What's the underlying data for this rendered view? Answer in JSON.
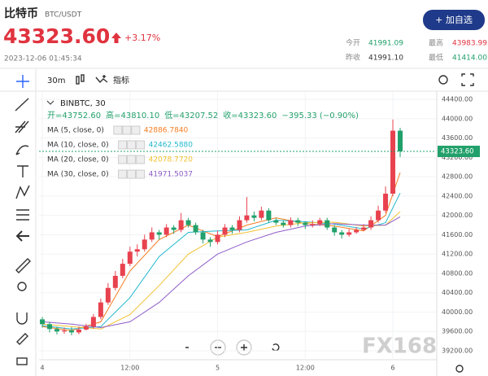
{
  "header": {
    "title": "比特币",
    "symbol": "BTC/USDT",
    "button": "+ 加自选",
    "price": "43323.60",
    "change": "+3.17%",
    "time": "2023-12-06 01:45:34",
    "stats": [
      {
        "label": "今开",
        "value": "41991.09"
      },
      {
        "label": "最高",
        "value": "43983.99"
      },
      {
        "label": "昨收",
        "value": "41991.10"
      },
      {
        "label": "最低",
        "value": "41414.00"
      }
    ]
  },
  "toolbar": {
    "interval": "30m",
    "indicators": "指标"
  },
  "watermark": "FX168",
  "chart_data": {
    "type": "candlestick",
    "symbol_label": "BINBTC, 30",
    "ohlc_line": [
      "开=43752.60",
      "高=43810.10",
      "低=43207.52",
      "收=43323.60",
      "−395.33 (−0.90%)"
    ],
    "up_color": "#e8424f",
    "down_color": "#22a06b",
    "grid": true,
    "x": [
      0,
      1,
      2,
      3,
      4,
      5,
      6,
      7,
      8,
      9,
      10,
      11,
      12,
      13,
      14,
      15,
      16,
      17,
      18,
      19,
      20,
      21,
      22,
      23,
      24,
      25,
      26,
      27,
      28,
      29,
      30,
      31,
      32,
      33,
      34,
      35,
      36,
      37,
      38,
      39,
      40,
      41,
      42,
      43,
      44,
      45,
      46,
      47,
      48,
      49
    ],
    "open": [
      39850,
      39750,
      39650,
      39600,
      39620,
      39580,
      39640,
      39700,
      39900,
      40200,
      40500,
      40750,
      41000,
      41250,
      41300,
      41500,
      41650,
      41600,
      41750,
      41700,
      41900,
      41800,
      41650,
      41500,
      41450,
      41600,
      41750,
      41700,
      41900,
      42000,
      41950,
      42100,
      41900,
      41850,
      41800,
      41900,
      41850,
      41800,
      41820,
      41900,
      41750,
      41650,
      41600,
      41650,
      41700,
      41750,
      41900,
      42100,
      42450,
      43752.6
    ],
    "high": [
      39900,
      39800,
      39700,
      39680,
      39690,
      39700,
      39760,
      39960,
      40280,
      40600,
      40850,
      41100,
      41350,
      41400,
      41600,
      41750,
      41700,
      41820,
      41800,
      42050,
      41950,
      41850,
      41700,
      41550,
      41680,
      41820,
      41800,
      41980,
      42380,
      42080,
      42180,
      42150,
      41950,
      41900,
      41960,
      41950,
      41880,
      41900,
      41950,
      41950,
      41800,
      41700,
      41720,
      41760,
      41820,
      41980,
      42200,
      42600,
      43983.99,
      43810.1
    ],
    "low": [
      39680,
      39580,
      39540,
      39550,
      39520,
      39540,
      39620,
      39660,
      39850,
      40150,
      40450,
      40700,
      40950,
      41150,
      41250,
      41450,
      41500,
      41550,
      41620,
      41650,
      41750,
      41600,
      41420,
      41350,
      41400,
      41550,
      41620,
      41650,
      41850,
      41880,
      41900,
      41850,
      41800,
      41750,
      41750,
      41780,
      41720,
      41750,
      41780,
      41700,
      41580,
      41520,
      41560,
      41620,
      41680,
      41700,
      41850,
      42050,
      42400,
      43207.52
    ],
    "close": [
      39750,
      39650,
      39600,
      39620,
      39580,
      39640,
      39700,
      39900,
      40200,
      40500,
      40750,
      41000,
      41250,
      41300,
      41500,
      41650,
      41600,
      41750,
      41700,
      41900,
      41800,
      41650,
      41500,
      41450,
      41600,
      41750,
      41700,
      41900,
      42000,
      41950,
      42100,
      41900,
      41850,
      41800,
      41900,
      41850,
      41800,
      41820,
      41900,
      41750,
      41650,
      41600,
      41650,
      41700,
      41750,
      41900,
      42100,
      42450,
      43752.6,
      43323.6
    ],
    "ylim": [
      39015,
      44570
    ],
    "yticks": [
      {
        "value": 39200,
        "label": "39200.00"
      },
      {
        "value": 39600,
        "label": "39600.00"
      },
      {
        "value": 40000,
        "label": "40000.00"
      },
      {
        "value": 40400,
        "label": "40400.00"
      },
      {
        "value": 40800,
        "label": "40800.00"
      },
      {
        "value": 41200,
        "label": "41200.00"
      },
      {
        "value": 41600,
        "label": "41600.00"
      },
      {
        "value": 42000,
        "label": "42000.00"
      },
      {
        "value": 42400,
        "label": "42400.00"
      },
      {
        "value": 42800,
        "label": "42800.00"
      },
      {
        "value": 43200,
        "label": "43200.00"
      },
      {
        "value": 43600,
        "label": "43600.00"
      },
      {
        "value": 44000,
        "label": "44000.00"
      },
      {
        "value": 44400,
        "label": "44400.00"
      }
    ],
    "xlim": [
      -0.45,
      53.9
    ],
    "xticks": [
      {
        "value": 0,
        "label": "4"
      },
      {
        "value": 12,
        "label": "12:00"
      },
      {
        "value": 24,
        "label": "5"
      },
      {
        "value": 36,
        "label": "12:00"
      },
      {
        "value": 48,
        "label": "6"
      }
    ],
    "ma": [
      {
        "name": "MA (5, close, 0)",
        "color": "#f57c1f",
        "x": [
          0,
          4,
          8,
          12,
          16,
          20,
          24,
          28,
          32,
          36,
          40,
          44,
          47,
          49
        ],
        "values": [
          39700,
          39620,
          39800,
          40850,
          41500,
          41800,
          41560,
          41800,
          41950,
          41830,
          41780,
          41680,
          42000,
          42886.784
        ],
        "last_value_label": "42886.7840"
      },
      {
        "name": "MA (10, close, 0)",
        "color": "#22b8cf",
        "x": [
          0,
          4,
          8,
          12,
          16,
          20,
          24,
          28,
          32,
          36,
          40,
          44,
          47,
          49
        ],
        "values": [
          39720,
          39650,
          39700,
          40300,
          41150,
          41650,
          41680,
          41700,
          41900,
          41870,
          41820,
          41720,
          41850,
          42462.588
        ],
        "last_value_label": "42462.5880"
      },
      {
        "name": "MA (20, close, 0)",
        "color": "#f2c230",
        "x": [
          0,
          4,
          8,
          12,
          16,
          20,
          24,
          28,
          32,
          36,
          40,
          44,
          47,
          49
        ],
        "values": [
          39750,
          39700,
          39650,
          39950,
          40550,
          41200,
          41550,
          41650,
          41780,
          41850,
          41860,
          41780,
          41800,
          42078.772
        ],
        "last_value_label": "42078.7720"
      },
      {
        "name": "MA (30, close, 0)",
        "color": "#8e5cc8",
        "x": [
          0,
          4,
          8,
          12,
          16,
          20,
          24,
          28,
          32,
          36,
          40,
          44,
          47,
          49
        ],
        "values": [
          39800,
          39750,
          39680,
          39800,
          40200,
          40750,
          41200,
          41450,
          41650,
          41780,
          41830,
          41800,
          41800,
          41971.5037
        ],
        "last_value_label": "41971.5037"
      }
    ]
  }
}
